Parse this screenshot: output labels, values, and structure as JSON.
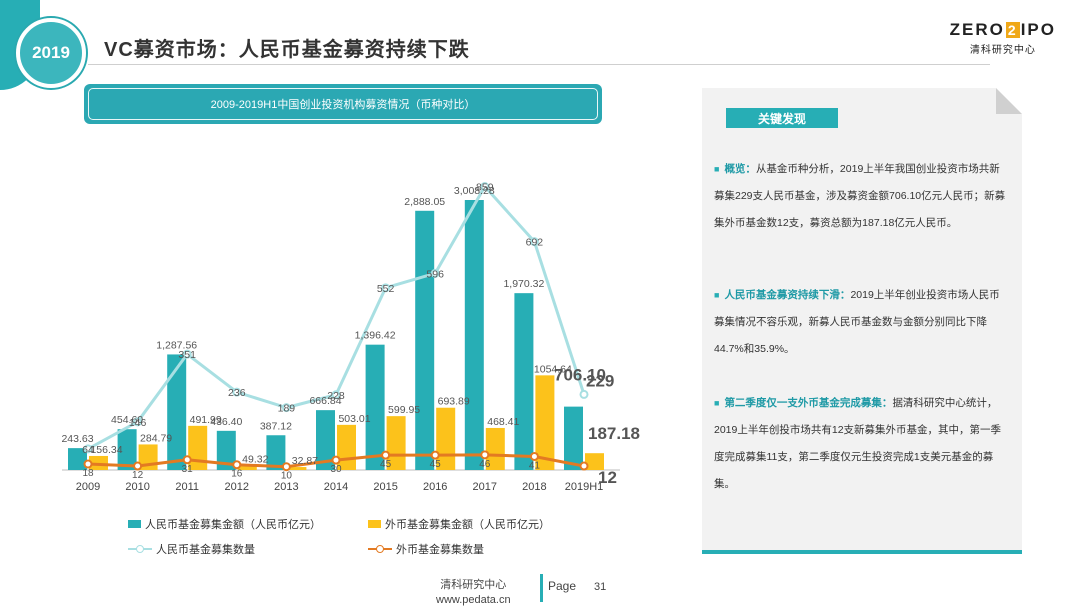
{
  "header": {
    "badge": "2019",
    "title": "VC募资市场：人民币基金募资持续下跌",
    "logo_main_a": "ZERO",
    "logo_main_mark": "2",
    "logo_main_b": "IPO",
    "logo_sub": "清科研究中心"
  },
  "chart_title": "2009-2019H1中国创业投资机构募资情况（币种对比）",
  "chart_data": {
    "type": "bar",
    "categories": [
      "2009",
      "2010",
      "2011",
      "2012",
      "2013",
      "2014",
      "2015",
      "2016",
      "2017",
      "2018",
      "2019H1"
    ],
    "series": [
      {
        "name": "人民币基金募集金额（人民币亿元）",
        "kind": "bar",
        "color": "#27aeb5",
        "values": [
          243.63,
          454.6,
          1287.56,
          436.4,
          387.12,
          666.84,
          1396.42,
          2888.05,
          3008.28,
          1970.32,
          706.1
        ],
        "labels": [
          "243.63",
          "454.60",
          "1,287.56",
          "436.40",
          "387.12",
          "666.84",
          "1,396.42",
          "2,888.05",
          "3,008.28",
          "1,970.32",
          "706.10"
        ]
      },
      {
        "name": "外币基金募集金额（人民币亿元）",
        "kind": "bar",
        "color": "#fcc21b",
        "values": [
          156.34,
          284.79,
          491.99,
          49.32,
          32.87,
          503.01,
          599.95,
          693.89,
          468.41,
          1054.64,
          187.18
        ],
        "labels": [
          "156.34",
          "284.79",
          "491.99",
          "49.32",
          "32.87",
          "503.01",
          "599.95",
          "693.89",
          "468.41",
          "1054.64",
          "187.18"
        ]
      },
      {
        "name": "人民币基金募集数量",
        "kind": "line",
        "color": "#a8dfe2",
        "values": [
          64,
          146,
          351,
          236,
          189,
          228,
          552,
          596,
          859,
          692,
          229
        ],
        "labels": [
          "64",
          "146",
          "351",
          "236",
          "189",
          "228",
          "552",
          "596",
          "859",
          "692",
          "229"
        ]
      },
      {
        "name": "外币基金募集数量",
        "kind": "line",
        "color": "#e37a22",
        "values": [
          18,
          12,
          31,
          16,
          10,
          30,
          45,
          45,
          46,
          41,
          12
        ],
        "labels": [
          "18",
          "12",
          "31",
          "16",
          "10",
          "30",
          "45",
          "45",
          "46",
          "41",
          "12"
        ]
      }
    ],
    "xlabel": "",
    "ylabel": "",
    "grid": false,
    "legend": "bottom"
  },
  "findings": {
    "header": "关键发现",
    "items": [
      {
        "lead": "概览：",
        "text": "从基金币种分析，2019上半年我国创业投资市场共新募集229支人民币基金，涉及募资金额706.10亿元人民币；新募集外币基金数12支，募资总额为187.18亿元人民币。"
      },
      {
        "lead": "人民币基金募资持续下滑：",
        "text": "2019上半年创业投资市场人民币募集情况不容乐观，新募人民币基金数与金额分别同比下降44.7%和35.9%。"
      },
      {
        "lead": "第二季度仅一支外币基金完成募集：",
        "text": "据清科研究中心统计，2019上半年创投市场共有12支新募集外币基金，其中，第一季度完成募集11支，第二季度仅元生投资完成1支美元基金的募集。"
      }
    ]
  },
  "footer": {
    "source_name": "清科研究中心",
    "source_url": "www.pedata.cn",
    "page_label": "Page",
    "page_number": "31"
  }
}
